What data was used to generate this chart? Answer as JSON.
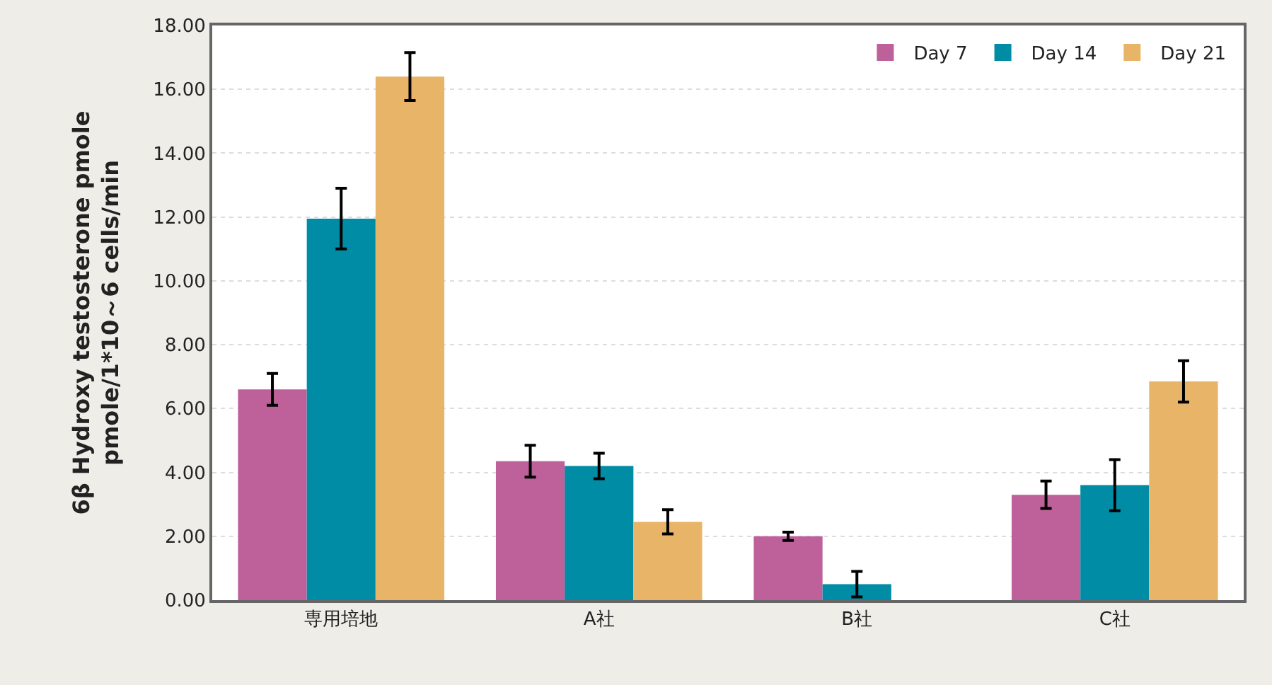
{
  "chart_data": {
    "type": "bar",
    "ylabel": "6β Hydroxy testosterone pmole\npmole/1*10～6 cells/min",
    "categories": [
      "専用培地",
      "A社",
      "B社",
      "C社"
    ],
    "series": [
      {
        "name": "Day 7",
        "color": "#be609a",
        "values": [
          6.6,
          4.35,
          2.0,
          3.3
        ],
        "errors": [
          0.5,
          0.5,
          0.13,
          0.43
        ]
      },
      {
        "name": "Day 14",
        "color": "#008ca5",
        "values": [
          11.95,
          4.2,
          0.5,
          3.6
        ],
        "errors": [
          0.95,
          0.4,
          0.4,
          0.8
        ]
      },
      {
        "name": "Day 21",
        "color": "#e8b468",
        "values": [
          16.4,
          2.45,
          null,
          6.85
        ],
        "errors": [
          0.75,
          0.38,
          null,
          0.65
        ]
      }
    ],
    "ylim": [
      0,
      18
    ],
    "yticks": [
      {
        "value": 0,
        "label": "0.00"
      },
      {
        "value": 2,
        "label": "2.00"
      },
      {
        "value": 4,
        "label": "4.00"
      },
      {
        "value": 6,
        "label": "6.00"
      },
      {
        "value": 8,
        "label": "8.00"
      },
      {
        "value": 10,
        "label": "10.00"
      },
      {
        "value": 12,
        "label": "12.00"
      },
      {
        "value": 14,
        "label": "14.00"
      },
      {
        "value": 16,
        "label": "16.00"
      },
      {
        "value": 18,
        "label": "18.00"
      }
    ],
    "grid": "y",
    "legend": "top right"
  }
}
